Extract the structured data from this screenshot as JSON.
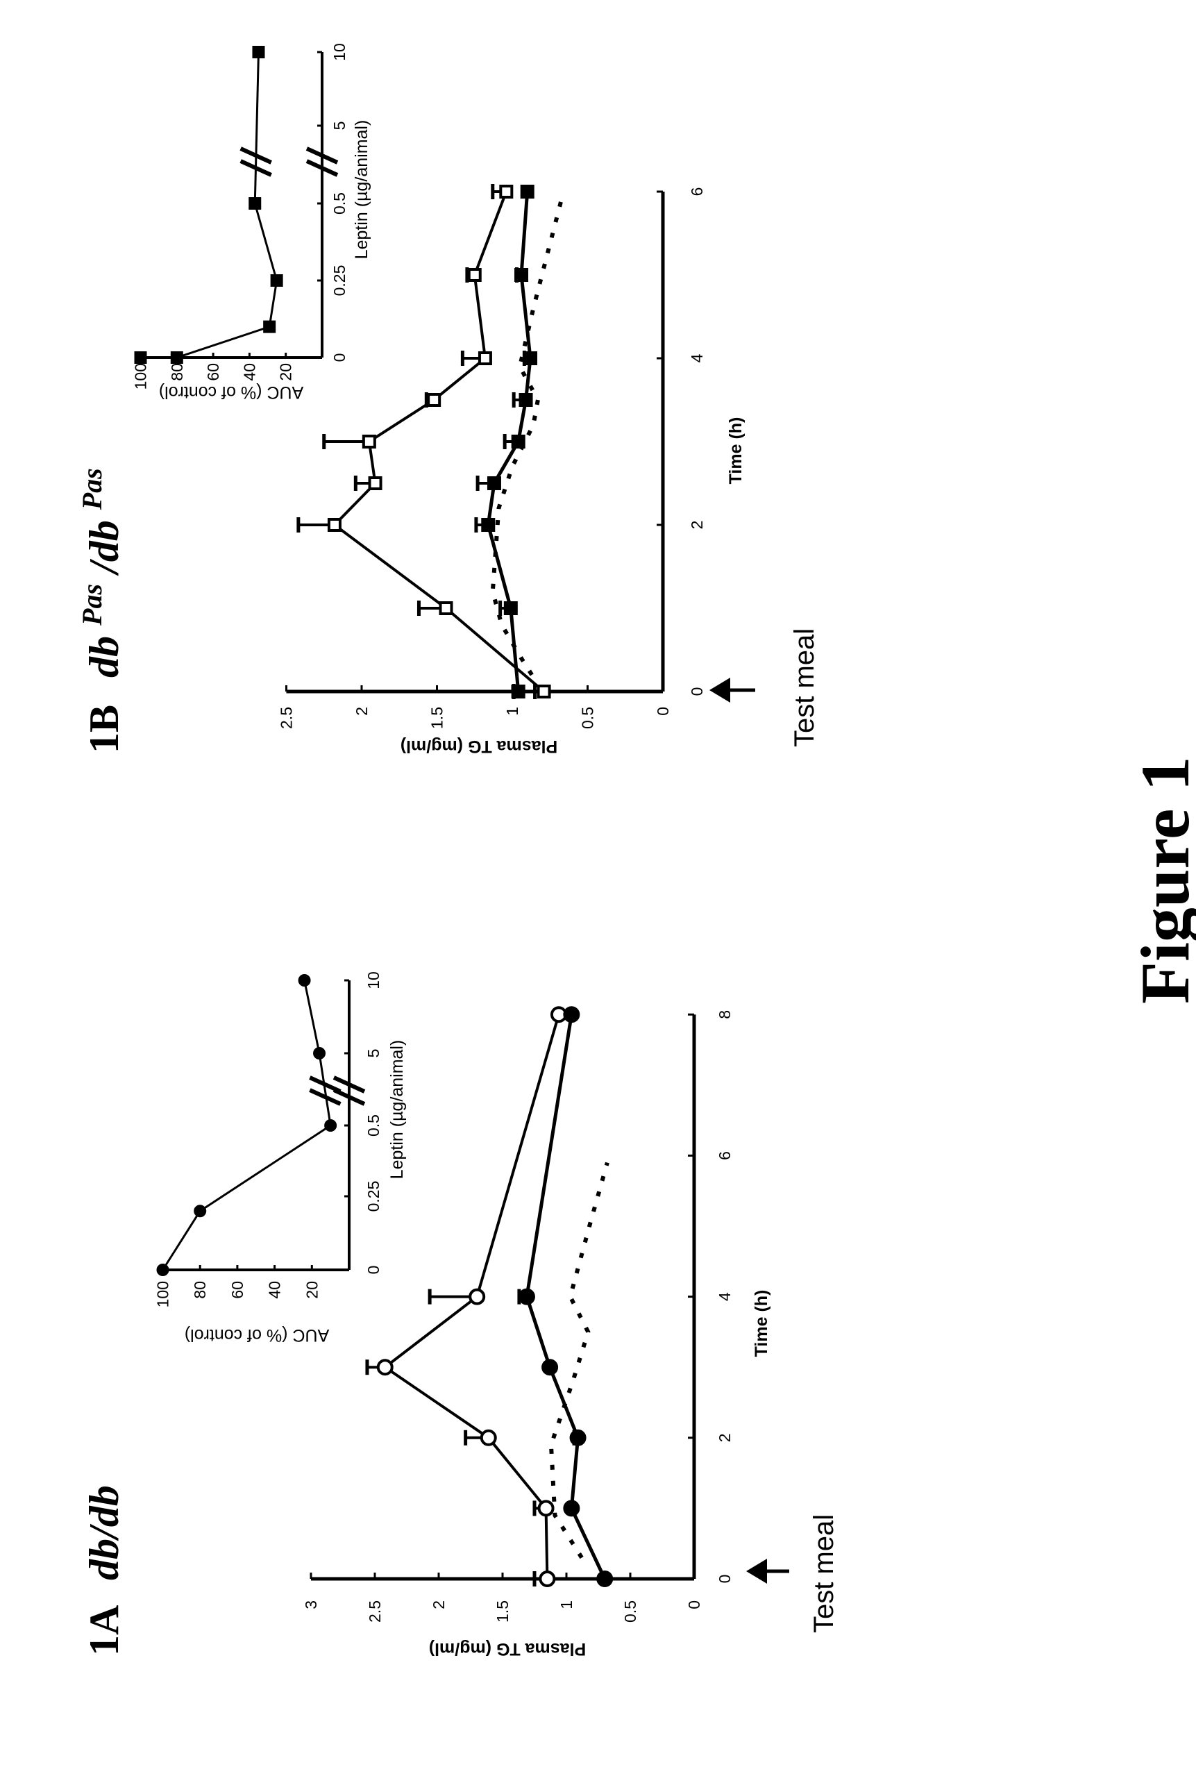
{
  "figure": {
    "title": "Figure 1"
  },
  "chart_data": [
    {
      "panel": "1A",
      "genotype": [
        "db/db"
      ],
      "type": "line",
      "xlabel": "Time (h)",
      "ylabel": "Plasma TG (mg/ml)",
      "annotation": "Test meal",
      "xlim": [
        0,
        8
      ],
      "ylim": [
        0,
        3
      ],
      "xticks": [
        0,
        2,
        4,
        6,
        8
      ],
      "yticks": [
        0,
        0.5,
        1,
        1.5,
        2,
        2.5,
        3
      ],
      "ytick_labels": [
        "0",
        "0.5",
        "1",
        "1.5",
        "2",
        "2.5",
        "3"
      ],
      "grid": false,
      "series": [
        {
          "marker": "open-circle",
          "x": [
            0,
            1,
            2,
            3,
            4,
            8
          ],
          "y": [
            1.15,
            1.16,
            1.61,
            2.42,
            1.7,
            1.06
          ],
          "sem": [
            0.1,
            0.09,
            0.18,
            0.14,
            0.37,
            0
          ]
        },
        {
          "marker": "filled-circle",
          "x": [
            0,
            1,
            2,
            3,
            4,
            8
          ],
          "y": [
            0.7,
            0.96,
            0.91,
            1.13,
            1.31,
            0.96
          ],
          "sem": [
            0,
            0,
            0.03,
            0,
            0.06,
            0
          ]
        },
        {
          "marker": "none",
          "style": "dashed",
          "x": [
            0.3,
            0.9,
            1.9,
            2.8,
            3.5,
            4,
            5,
            5.9
          ],
          "y": [
            0.88,
            1.09,
            1.12,
            0.95,
            0.83,
            0.97,
            0.82,
            0.68
          ]
        }
      ],
      "inset": {
        "type": "line",
        "xlabel": "Leptin (µg/animal)",
        "ylabel": "AUC (% of control)",
        "xticks": [
          0,
          0.25,
          0.5,
          5,
          10
        ],
        "xtick_labels": [
          "0",
          "0.25",
          "0.5",
          "5",
          "10"
        ],
        "axis_break": "between 0.5 and 5",
        "yticks": [
          20,
          40,
          60,
          80,
          100
        ],
        "ylim": [
          0,
          100
        ],
        "series": [
          {
            "marker": "filled-circle",
            "x": [
              0,
              0.2,
              0.5,
              5,
              10
            ],
            "y": [
              100,
              80,
              10,
              16,
              24
            ]
          }
        ]
      }
    },
    {
      "panel": "1B",
      "genotype": [
        "db",
        "Pas",
        "/db",
        "Pas"
      ],
      "type": "line",
      "xlabel": "Time  (h)",
      "ylabel": "Plasma TG (mg/ml)",
      "annotation": "Test meal",
      "xlim": [
        0,
        6
      ],
      "ylim": [
        0,
        2.5
      ],
      "xticks": [
        0,
        2,
        4,
        6
      ],
      "yticks": [
        0,
        0.5,
        1,
        1.5,
        2,
        2.5
      ],
      "ytick_labels": [
        "0",
        "0.5",
        "1",
        "1.5",
        "2",
        "2.5"
      ],
      "grid": false,
      "series": [
        {
          "marker": "open-square",
          "x": [
            0,
            1,
            2,
            2.5,
            3,
            3.5,
            4,
            5,
            6
          ],
          "y": [
            0.79,
            1.44,
            2.18,
            1.91,
            1.95,
            1.52,
            1.18,
            1.25,
            1.04
          ],
          "sem": [
            0.06,
            0.18,
            0.24,
            0.13,
            0.3,
            0.05,
            0.15,
            0.05,
            0.09
          ]
        },
        {
          "marker": "filled-square",
          "x": [
            0,
            1,
            2,
            2.5,
            3,
            3.5,
            4,
            5,
            6
          ],
          "y": [
            0.96,
            1.01,
            1.16,
            1.12,
            0.96,
            0.91,
            0.88,
            0.94,
            0.9
          ],
          "sem": [
            0.03,
            0.07,
            0.08,
            0.11,
            0.09,
            0.08,
            0.04,
            0.03,
            0
          ]
        },
        {
          "marker": "none",
          "style": "dashed",
          "x": [
            0.2,
            0.4,
            0.8,
            1.2,
            2.2,
            2.7,
            3.2,
            3.5,
            3.9,
            4.6,
            5.3,
            6
          ],
          "y": [
            0.87,
            0.94,
            1.07,
            1.13,
            1.09,
            1.0,
            0.86,
            0.83,
            0.95,
            0.86,
            0.76,
            0.66
          ]
        }
      ],
      "inset": {
        "type": "line",
        "xlabel": "Leptin (µg/animal)",
        "ylabel": "AUC (% of control)",
        "xticks": [
          0,
          0.25,
          0.5,
          5,
          10
        ],
        "xtick_labels": [
          "0",
          "0.25",
          "0.5",
          "5",
          "10"
        ],
        "axis_break": "between 0.5 and 5",
        "yticks": [
          20,
          40,
          60,
          80,
          100
        ],
        "ylim": [
          0,
          100
        ],
        "series": [
          {
            "marker": "filled-square",
            "x": [
              0,
              0,
              0.1,
              0.25,
              0.5,
              10
            ],
            "y": [
              100,
              80,
              29,
              25,
              37,
              35
            ]
          }
        ]
      }
    }
  ]
}
